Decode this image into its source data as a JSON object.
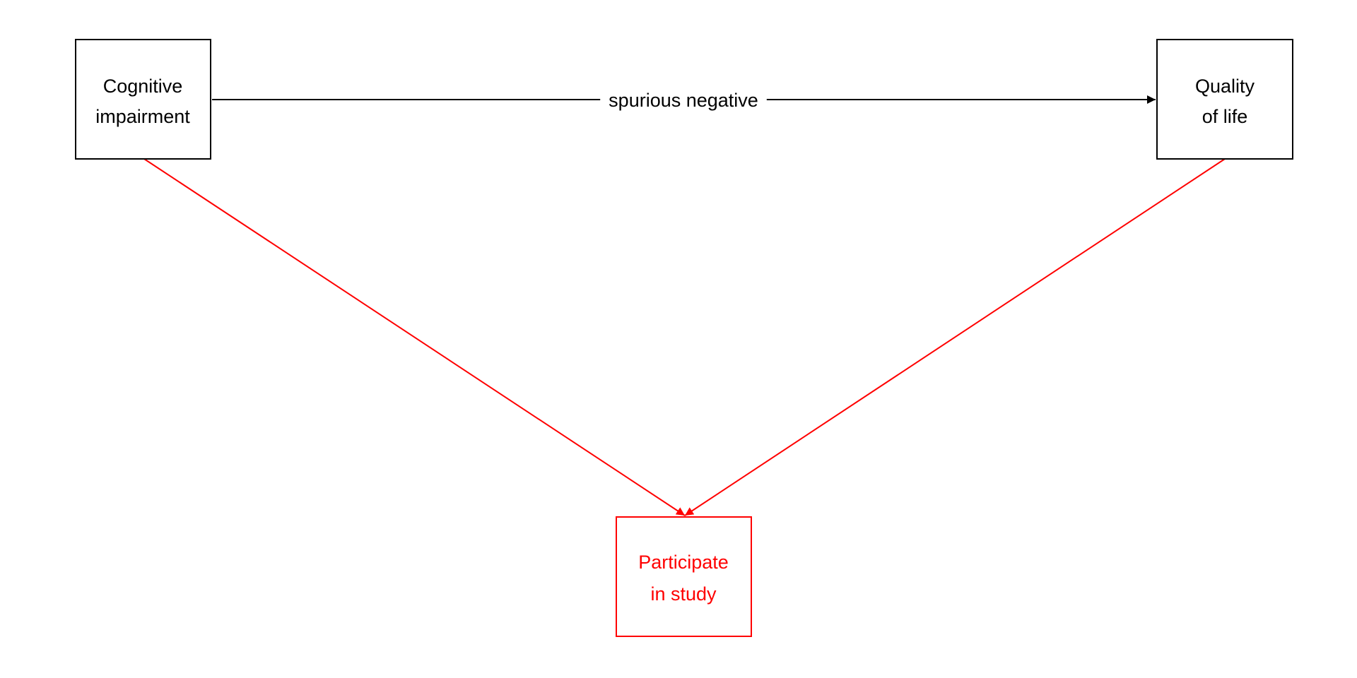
{
  "diagram": {
    "nodes": {
      "cognitive": {
        "line1": "Cognitive",
        "line2": "impairment",
        "color": "#000000"
      },
      "quality": {
        "line1": "Quality",
        "line2": "of life",
        "color": "#000000"
      },
      "participate": {
        "line1": "Participate",
        "line2": "in study",
        "color": "#ff0000"
      }
    },
    "edges": {
      "cognitive_to_quality": {
        "label": "spurious negative",
        "color": "#000000"
      },
      "cognitive_to_participate": {
        "color": "#ff0000"
      },
      "quality_to_participate": {
        "color": "#ff0000"
      }
    }
  }
}
